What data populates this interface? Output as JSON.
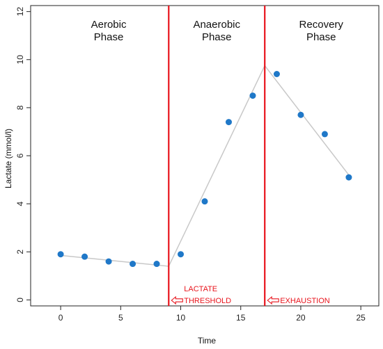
{
  "chart_data": {
    "type": "scatter",
    "xlabel": "Time",
    "ylabel": "Lactate (mmol/l)",
    "xlim": [
      -2.5,
      26.5
    ],
    "ylim": [
      -0.25,
      12.25
    ],
    "x_ticks": [
      0,
      5,
      10,
      15,
      20,
      25
    ],
    "y_ticks": [
      0,
      2,
      4,
      6,
      8,
      10,
      12
    ],
    "grid": false,
    "points": {
      "x": [
        0,
        2,
        4,
        6,
        8,
        10,
        12,
        14,
        16,
        18,
        20,
        22,
        24
      ],
      "y": [
        1.9,
        1.8,
        1.6,
        1.5,
        1.5,
        1.9,
        4.1,
        7.4,
        8.5,
        9.4,
        7.7,
        6.9,
        5.1
      ],
      "color": "#1f78c8"
    },
    "fit_line": {
      "x": [
        0,
        9,
        17,
        24
      ],
      "y": [
        1.85,
        1.4,
        9.75,
        5.2
      ],
      "color": "#c8c8c8"
    },
    "vertical_lines": [
      {
        "x": 9,
        "color": "#e8141c"
      },
      {
        "x": 17,
        "color": "#e8141c"
      }
    ],
    "phases": [
      {
        "line1": "Aerobic",
        "line2": "Phase",
        "x_center": 4
      },
      {
        "line1": "Anaerobic",
        "line2": "Phase",
        "x_center": 13
      },
      {
        "line1": "Recovery",
        "line2": "Phase",
        "x_center": 21.7
      }
    ],
    "annotations": [
      {
        "line1": "LACTATE",
        "line2": "THRESHOLD",
        "x": 9,
        "color": "#e8141c"
      },
      {
        "line1": "EXHAUSTION",
        "line2": "",
        "x": 17,
        "color": "#e8141c"
      }
    ]
  }
}
